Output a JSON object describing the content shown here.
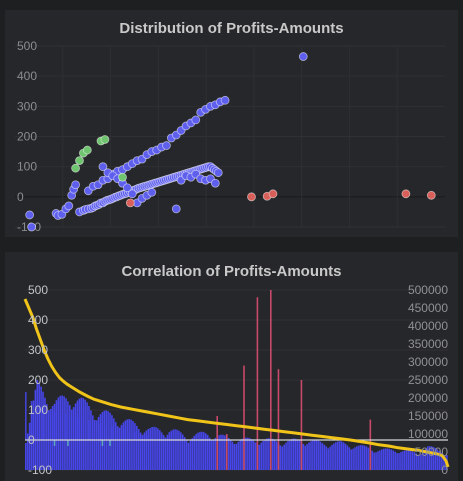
{
  "chart_data": [
    {
      "type": "scatter",
      "title": "Distribution of Profits-Amounts",
      "xlabel": "",
      "ylabel": "",
      "ylim": [
        -100,
        500
      ],
      "y_ticks": [
        "500",
        "400",
        "300",
        "200",
        "100",
        "0",
        "-100"
      ],
      "grid": true,
      "colors": {
        "default": "#5f5fee",
        "positive": "#6fc46f",
        "negative": "#d9605a"
      },
      "series": [
        {
          "color_role": "default",
          "points": [
            [
              15,
              -60
            ],
            [
              17,
              -100
            ],
            [
              42,
              -55
            ],
            [
              44,
              -62
            ],
            [
              48,
              -58
            ],
            [
              52,
              -40
            ],
            [
              55,
              -30
            ],
            [
              58,
              5
            ],
            [
              60,
              25
            ],
            [
              62,
              40
            ],
            [
              66,
              -50
            ],
            [
              70,
              -45
            ],
            [
              72,
              -42
            ],
            [
              75,
              -40
            ],
            [
              78,
              -38
            ],
            [
              80,
              -35
            ],
            [
              82,
              -30
            ],
            [
              84,
              -28
            ],
            [
              86,
              -25
            ],
            [
              88,
              -20
            ],
            [
              90,
              -20
            ],
            [
              92,
              -15
            ],
            [
              94,
              -12
            ],
            [
              96,
              -10
            ],
            [
              98,
              -8
            ],
            [
              100,
              -5
            ],
            [
              102,
              -2
            ],
            [
              104,
              0
            ],
            [
              106,
              3
            ],
            [
              108,
              5
            ],
            [
              110,
              8
            ],
            [
              112,
              10
            ],
            [
              114,
              12
            ],
            [
              116,
              15
            ],
            [
              118,
              18
            ],
            [
              120,
              20
            ],
            [
              122,
              22
            ],
            [
              124,
              25
            ],
            [
              126,
              28
            ],
            [
              128,
              30
            ],
            [
              130,
              32
            ],
            [
              132,
              34
            ],
            [
              134,
              36
            ],
            [
              136,
              38
            ],
            [
              138,
              40
            ],
            [
              140,
              42
            ],
            [
              142,
              44
            ],
            [
              144,
              46
            ],
            [
              146,
              48
            ],
            [
              148,
              50
            ],
            [
              150,
              52
            ],
            [
              152,
              54
            ],
            [
              154,
              56
            ],
            [
              156,
              58
            ],
            [
              158,
              60
            ],
            [
              160,
              62
            ],
            [
              162,
              64
            ],
            [
              164,
              66
            ],
            [
              166,
              68
            ],
            [
              168,
              70
            ],
            [
              170,
              72
            ],
            [
              172,
              74
            ],
            [
              174,
              76
            ],
            [
              176,
              78
            ],
            [
              178,
              80
            ],
            [
              180,
              82
            ],
            [
              182,
              84
            ],
            [
              184,
              86
            ],
            [
              186,
              88
            ],
            [
              188,
              90
            ],
            [
              190,
              92
            ],
            [
              192,
              94
            ],
            [
              194,
              96
            ],
            [
              196,
              98
            ],
            [
              198,
              100
            ],
            [
              200,
              100
            ],
            [
              202,
              95
            ],
            [
              204,
              90
            ],
            [
              206,
              85
            ],
            [
              208,
              80
            ],
            [
              75,
              20
            ],
            [
              80,
              35
            ],
            [
              85,
              40
            ],
            [
              90,
              55
            ],
            [
              95,
              60
            ],
            [
              100,
              75
            ],
            [
              105,
              85
            ],
            [
              110,
              90
            ],
            [
              115,
              100
            ],
            [
              120,
              110
            ],
            [
              125,
              120
            ],
            [
              130,
              125
            ],
            [
              135,
              140
            ],
            [
              140,
              150
            ],
            [
              145,
              155
            ],
            [
              150,
              165
            ],
            [
              155,
              170
            ],
            [
              160,
              195
            ],
            [
              165,
              205
            ],
            [
              170,
              220
            ],
            [
              175,
              235
            ],
            [
              180,
              245
            ],
            [
              185,
              255
            ],
            [
              190,
              280
            ],
            [
              195,
              290
            ],
            [
              200,
              300
            ],
            [
              205,
              305
            ],
            [
              210,
              315
            ],
            [
              215,
              320
            ],
            [
              90,
              100
            ],
            [
              95,
              80
            ],
            [
              100,
              70
            ],
            [
              105,
              60
            ],
            [
              110,
              45
            ],
            [
              115,
              30
            ],
            [
              120,
              10
            ],
            [
              125,
              -20
            ],
            [
              130,
              -5
            ],
            [
              135,
              5
            ],
            [
              140,
              15
            ],
            [
              165,
              -40
            ],
            [
              170,
              55
            ],
            [
              175,
              70
            ],
            [
              180,
              65
            ],
            [
              185,
              75
            ],
            [
              190,
              60
            ],
            [
              195,
              55
            ],
            [
              200,
              60
            ],
            [
              205,
              45
            ],
            [
              295,
              465
            ]
          ]
        },
        {
          "color_role": "positive",
          "points": [
            [
              62,
              95
            ],
            [
              66,
              120
            ],
            [
              70,
              145
            ],
            [
              74,
              155
            ],
            [
              88,
              185
            ],
            [
              92,
              190
            ],
            [
              110,
              65
            ]
          ]
        },
        {
          "color_role": "negative",
          "points": [
            [
              118,
              -20
            ],
            [
              242,
              0
            ],
            [
              258,
              2
            ],
            [
              264,
              10
            ],
            [
              400,
              10
            ],
            [
              426,
              5
            ]
          ]
        }
      ]
    },
    {
      "type": "bar",
      "title": "Correlation of Profits-Amounts",
      "xlabel": "",
      "ylabel": "",
      "ylim": [
        -100,
        500
      ],
      "y_ticks": [
        "500",
        "400",
        "300",
        "200",
        "100",
        "0",
        "-100"
      ],
      "y2lim": [
        0,
        500000
      ],
      "y2_ticks": [
        "500000",
        "450000",
        "400000",
        "350000",
        "300000",
        "250000",
        "200000",
        "150000",
        "100000",
        "50000",
        "0"
      ],
      "grid": true,
      "colors": {
        "bars_default": "#4646ea",
        "bars_negative": "#5aa3c8",
        "bars_red": "#c84a6a",
        "line": "#f0c419",
        "baseline": "#d7d7d7"
      },
      "amount_bars_y2": [
        [
          0,
          100000
        ],
        [
          12,
          250000
        ],
        [
          30,
          200000
        ],
        [
          50,
          220000
        ],
        [
          70,
          180000
        ],
        [
          90,
          160000
        ],
        [
          110,
          140000
        ],
        [
          130,
          120000
        ],
        [
          150,
          120000
        ],
        [
          170,
          100000
        ],
        [
          190,
          110000
        ],
        [
          210,
          95000
        ],
        [
          230,
          90000
        ],
        [
          250,
          90000
        ],
        [
          270,
          85000
        ],
        [
          290,
          90000
        ],
        [
          310,
          80000
        ],
        [
          330,
          80000
        ],
        [
          350,
          70000
        ],
        [
          370,
          60000
        ],
        [
          390,
          60000
        ],
        [
          410,
          50000
        ],
        [
          420,
          70000
        ],
        [
          430,
          60000
        ],
        [
          440,
          50000
        ]
      ],
      "profit_bars_left": [
        [
          0,
          160
        ],
        [
          6,
          130
        ],
        [
          12,
          120
        ],
        [
          18,
          110
        ],
        [
          24,
          100
        ],
        [
          30,
          95
        ],
        [
          36,
          90
        ],
        [
          42,
          85
        ],
        [
          48,
          80
        ],
        [
          54,
          75
        ],
        [
          60,
          70
        ],
        [
          66,
          65
        ],
        [
          72,
          60
        ],
        [
          78,
          55
        ],
        [
          84,
          50
        ],
        [
          90,
          45
        ],
        [
          96,
          40
        ],
        [
          102,
          35
        ],
        [
          108,
          30
        ],
        [
          114,
          25
        ],
        [
          120,
          20
        ],
        [
          126,
          15
        ],
        [
          132,
          10
        ],
        [
          138,
          5
        ],
        [
          144,
          0
        ]
      ],
      "red_spikes_y2": [
        [
          200,
          150000
        ],
        [
          210,
          100000
        ],
        [
          228,
          290000
        ],
        [
          242,
          480000
        ],
        [
          256,
          500000
        ],
        [
          264,
          280000
        ],
        [
          288,
          250000
        ],
        [
          360,
          140000
        ]
      ],
      "line_left": [
        [
          0,
          470
        ],
        [
          4,
          440
        ],
        [
          8,
          410
        ],
        [
          12,
          370
        ],
        [
          16,
          335
        ],
        [
          20,
          300
        ],
        [
          24,
          270
        ],
        [
          28,
          245
        ],
        [
          32,
          225
        ],
        [
          36,
          208
        ],
        [
          40,
          196
        ],
        [
          44,
          186
        ],
        [
          48,
          178
        ],
        [
          52,
          170
        ],
        [
          56,
          162
        ],
        [
          60,
          155
        ],
        [
          66,
          145
        ],
        [
          72,
          136
        ],
        [
          80,
          128
        ],
        [
          90,
          118
        ],
        [
          100,
          110
        ],
        [
          110,
          104
        ],
        [
          120,
          98
        ],
        [
          130,
          92
        ],
        [
          140,
          86
        ],
        [
          150,
          80
        ],
        [
          160,
          74
        ],
        [
          170,
          68
        ],
        [
          180,
          64
        ],
        [
          190,
          60
        ],
        [
          200,
          56
        ],
        [
          210,
          52
        ],
        [
          220,
          48
        ],
        [
          230,
          44
        ],
        [
          240,
          40
        ],
        [
          250,
          36
        ],
        [
          260,
          32
        ],
        [
          270,
          28
        ],
        [
          280,
          24
        ],
        [
          290,
          20
        ],
        [
          300,
          16
        ],
        [
          310,
          12
        ],
        [
          320,
          8
        ],
        [
          330,
          4
        ],
        [
          340,
          0
        ],
        [
          350,
          -5
        ],
        [
          360,
          -10
        ],
        [
          370,
          -16
        ],
        [
          380,
          -20
        ],
        [
          390,
          -26
        ],
        [
          400,
          -30
        ],
        [
          410,
          -34
        ],
        [
          420,
          -40
        ],
        [
          430,
          -46
        ],
        [
          436,
          -52
        ],
        [
          440,
          -70
        ],
        [
          442,
          -90
        ]
      ]
    }
  ]
}
